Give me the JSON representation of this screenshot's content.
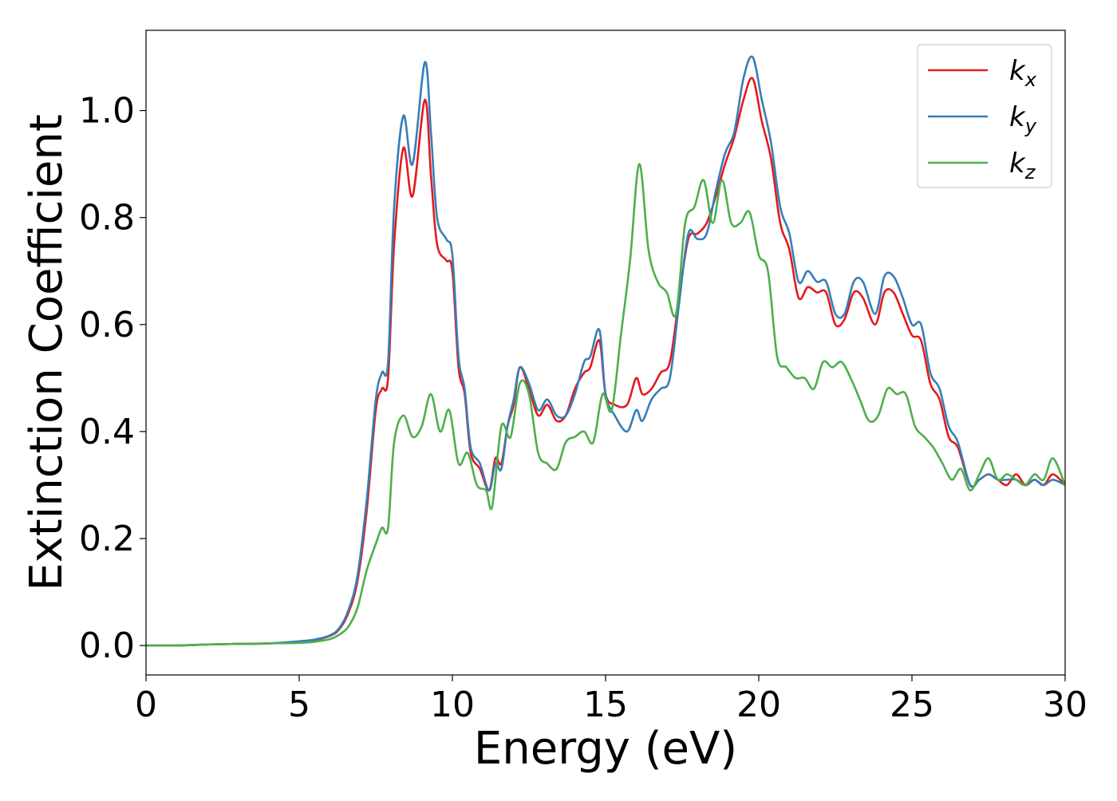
{
  "chart_data": {
    "type": "line",
    "title": "",
    "xlabel": "Energy (eV)",
    "ylabel": "Extinction Coefficient",
    "xlim": [
      0,
      30
    ],
    "ylim": [
      -0.055,
      1.15
    ],
    "xticks": [
      0,
      5,
      10,
      15,
      20,
      25,
      30
    ],
    "xtick_labels": [
      "0",
      "5",
      "10",
      "15",
      "20",
      "25",
      "30"
    ],
    "yticks": [
      0.0,
      0.2,
      0.4,
      0.6,
      0.8,
      1.0
    ],
    "ytick_labels": [
      "0.0",
      "0.2",
      "0.4",
      "0.6",
      "0.8",
      "1.0"
    ],
    "grid": false,
    "legend_position": "top-right",
    "series": [
      {
        "name": "k_x",
        "label_base": "k",
        "label_sub": "x",
        "color": "#e41a1c",
        "x": [
          0,
          1,
          2,
          3,
          4,
          5,
          5.5,
          6,
          6.3,
          6.6,
          6.9,
          7.2,
          7.5,
          7.7,
          7.9,
          8.1,
          8.4,
          8.7,
          9.1,
          9.3,
          9.5,
          9.8,
          10.0,
          10.2,
          10.4,
          10.6,
          10.9,
          11.2,
          11.4,
          11.6,
          11.8,
          12.0,
          12.2,
          12.5,
          12.8,
          13.1,
          13.4,
          13.7,
          14.0,
          14.3,
          14.5,
          14.8,
          15.0,
          15.3,
          15.7,
          16.0,
          16.2,
          16.5,
          16.8,
          17.1,
          17.4,
          17.7,
          18.0,
          18.3,
          18.6,
          18.9,
          19.2,
          19.5,
          19.8,
          20.1,
          20.4,
          20.7,
          21.0,
          21.3,
          21.6,
          21.9,
          22.2,
          22.5,
          22.8,
          23.1,
          23.4,
          23.8,
          24.1,
          24.4,
          24.7,
          25.0,
          25.3,
          25.6,
          25.9,
          26.2,
          26.5,
          26.9,
          27.2,
          27.5,
          27.8,
          28.1,
          28.4,
          28.7,
          29.0,
          29.3,
          29.6,
          30.0
        ],
        "y": [
          0.0,
          0.0,
          0.002,
          0.003,
          0.004,
          0.007,
          0.01,
          0.018,
          0.03,
          0.06,
          0.12,
          0.25,
          0.44,
          0.48,
          0.5,
          0.75,
          0.93,
          0.84,
          1.02,
          0.88,
          0.75,
          0.72,
          0.7,
          0.52,
          0.47,
          0.36,
          0.33,
          0.29,
          0.35,
          0.34,
          0.41,
          0.45,
          0.52,
          0.48,
          0.43,
          0.45,
          0.42,
          0.43,
          0.48,
          0.51,
          0.52,
          0.57,
          0.47,
          0.45,
          0.45,
          0.5,
          0.47,
          0.48,
          0.51,
          0.53,
          0.65,
          0.76,
          0.77,
          0.79,
          0.84,
          0.9,
          0.95,
          1.02,
          1.06,
          0.98,
          0.91,
          0.79,
          0.74,
          0.65,
          0.67,
          0.66,
          0.66,
          0.6,
          0.61,
          0.66,
          0.65,
          0.6,
          0.66,
          0.66,
          0.62,
          0.58,
          0.57,
          0.49,
          0.46,
          0.39,
          0.37,
          0.3,
          0.31,
          0.32,
          0.31,
          0.3,
          0.32,
          0.3,
          0.31,
          0.3,
          0.32,
          0.3
        ]
      },
      {
        "name": "k_y",
        "label_base": "k",
        "label_sub": "y",
        "color": "#377eb8",
        "x": [
          0,
          1,
          2,
          3,
          4,
          5,
          5.5,
          6,
          6.3,
          6.6,
          6.9,
          7.2,
          7.5,
          7.7,
          7.9,
          8.1,
          8.4,
          8.7,
          9.1,
          9.3,
          9.5,
          9.8,
          10.0,
          10.2,
          10.4,
          10.6,
          10.9,
          11.2,
          11.4,
          11.6,
          11.8,
          12.0,
          12.2,
          12.5,
          12.8,
          13.1,
          13.4,
          13.7,
          14.0,
          14.3,
          14.5,
          14.8,
          15.0,
          15.3,
          15.7,
          16.0,
          16.2,
          16.5,
          16.8,
          17.1,
          17.4,
          17.7,
          18.0,
          18.3,
          18.6,
          18.9,
          19.2,
          19.5,
          19.8,
          20.1,
          20.4,
          20.7,
          21.0,
          21.3,
          21.6,
          21.9,
          22.2,
          22.5,
          22.8,
          23.1,
          23.4,
          23.8,
          24.1,
          24.4,
          24.7,
          25.0,
          25.3,
          25.6,
          25.9,
          26.2,
          26.5,
          26.9,
          27.2,
          27.5,
          27.8,
          28.1,
          28.4,
          28.7,
          29.0,
          29.3,
          29.6,
          30.0
        ],
        "y": [
          0.0,
          0.0,
          0.002,
          0.003,
          0.004,
          0.008,
          0.011,
          0.019,
          0.032,
          0.065,
          0.13,
          0.27,
          0.46,
          0.51,
          0.53,
          0.82,
          0.99,
          0.9,
          1.09,
          0.96,
          0.8,
          0.76,
          0.73,
          0.54,
          0.48,
          0.37,
          0.34,
          0.29,
          0.34,
          0.33,
          0.41,
          0.46,
          0.52,
          0.49,
          0.44,
          0.46,
          0.43,
          0.43,
          0.47,
          0.53,
          0.54,
          0.59,
          0.47,
          0.43,
          0.4,
          0.44,
          0.42,
          0.46,
          0.48,
          0.5,
          0.64,
          0.77,
          0.76,
          0.77,
          0.85,
          0.92,
          0.96,
          1.06,
          1.1,
          1.02,
          0.94,
          0.82,
          0.77,
          0.68,
          0.7,
          0.68,
          0.68,
          0.62,
          0.62,
          0.68,
          0.68,
          0.62,
          0.69,
          0.69,
          0.65,
          0.6,
          0.6,
          0.51,
          0.48,
          0.41,
          0.38,
          0.3,
          0.31,
          0.32,
          0.31,
          0.31,
          0.31,
          0.3,
          0.31,
          0.3,
          0.31,
          0.3
        ]
      },
      {
        "name": "k_z",
        "label_base": "k",
        "label_sub": "z",
        "color": "#4daf4a",
        "x": [
          0,
          1,
          2,
          3,
          4,
          5,
          5.5,
          6,
          6.3,
          6.6,
          6.9,
          7.2,
          7.5,
          7.7,
          7.9,
          8.1,
          8.4,
          8.7,
          9.0,
          9.3,
          9.6,
          9.9,
          10.2,
          10.5,
          10.8,
          11.1,
          11.3,
          11.6,
          11.9,
          12.2,
          12.5,
          12.8,
          13.1,
          13.4,
          13.7,
          14.0,
          14.3,
          14.6,
          14.9,
          15.2,
          15.5,
          15.8,
          16.1,
          16.4,
          16.7,
          17.0,
          17.3,
          17.6,
          17.9,
          18.2,
          18.5,
          18.8,
          19.1,
          19.4,
          19.7,
          20.0,
          20.3,
          20.6,
          20.9,
          21.2,
          21.5,
          21.8,
          22.1,
          22.4,
          22.7,
          23.0,
          23.3,
          23.6,
          23.9,
          24.2,
          24.5,
          24.8,
          25.1,
          25.4,
          25.7,
          26.0,
          26.3,
          26.6,
          26.9,
          27.2,
          27.5,
          27.8,
          28.1,
          28.4,
          28.7,
          29.0,
          29.3,
          29.6,
          30.0
        ],
        "y": [
          0.0,
          0.0,
          0.002,
          0.003,
          0.004,
          0.005,
          0.007,
          0.012,
          0.02,
          0.035,
          0.07,
          0.14,
          0.19,
          0.22,
          0.22,
          0.38,
          0.43,
          0.39,
          0.41,
          0.47,
          0.4,
          0.44,
          0.34,
          0.36,
          0.3,
          0.29,
          0.26,
          0.41,
          0.39,
          0.49,
          0.47,
          0.36,
          0.34,
          0.33,
          0.38,
          0.39,
          0.4,
          0.38,
          0.47,
          0.44,
          0.58,
          0.72,
          0.9,
          0.74,
          0.68,
          0.66,
          0.62,
          0.79,
          0.82,
          0.87,
          0.79,
          0.87,
          0.79,
          0.79,
          0.81,
          0.73,
          0.7,
          0.54,
          0.52,
          0.5,
          0.5,
          0.48,
          0.53,
          0.52,
          0.53,
          0.5,
          0.46,
          0.42,
          0.43,
          0.48,
          0.47,
          0.47,
          0.41,
          0.39,
          0.37,
          0.34,
          0.31,
          0.33,
          0.29,
          0.32,
          0.35,
          0.31,
          0.32,
          0.31,
          0.3,
          0.32,
          0.31,
          0.35,
          0.3
        ]
      }
    ]
  }
}
